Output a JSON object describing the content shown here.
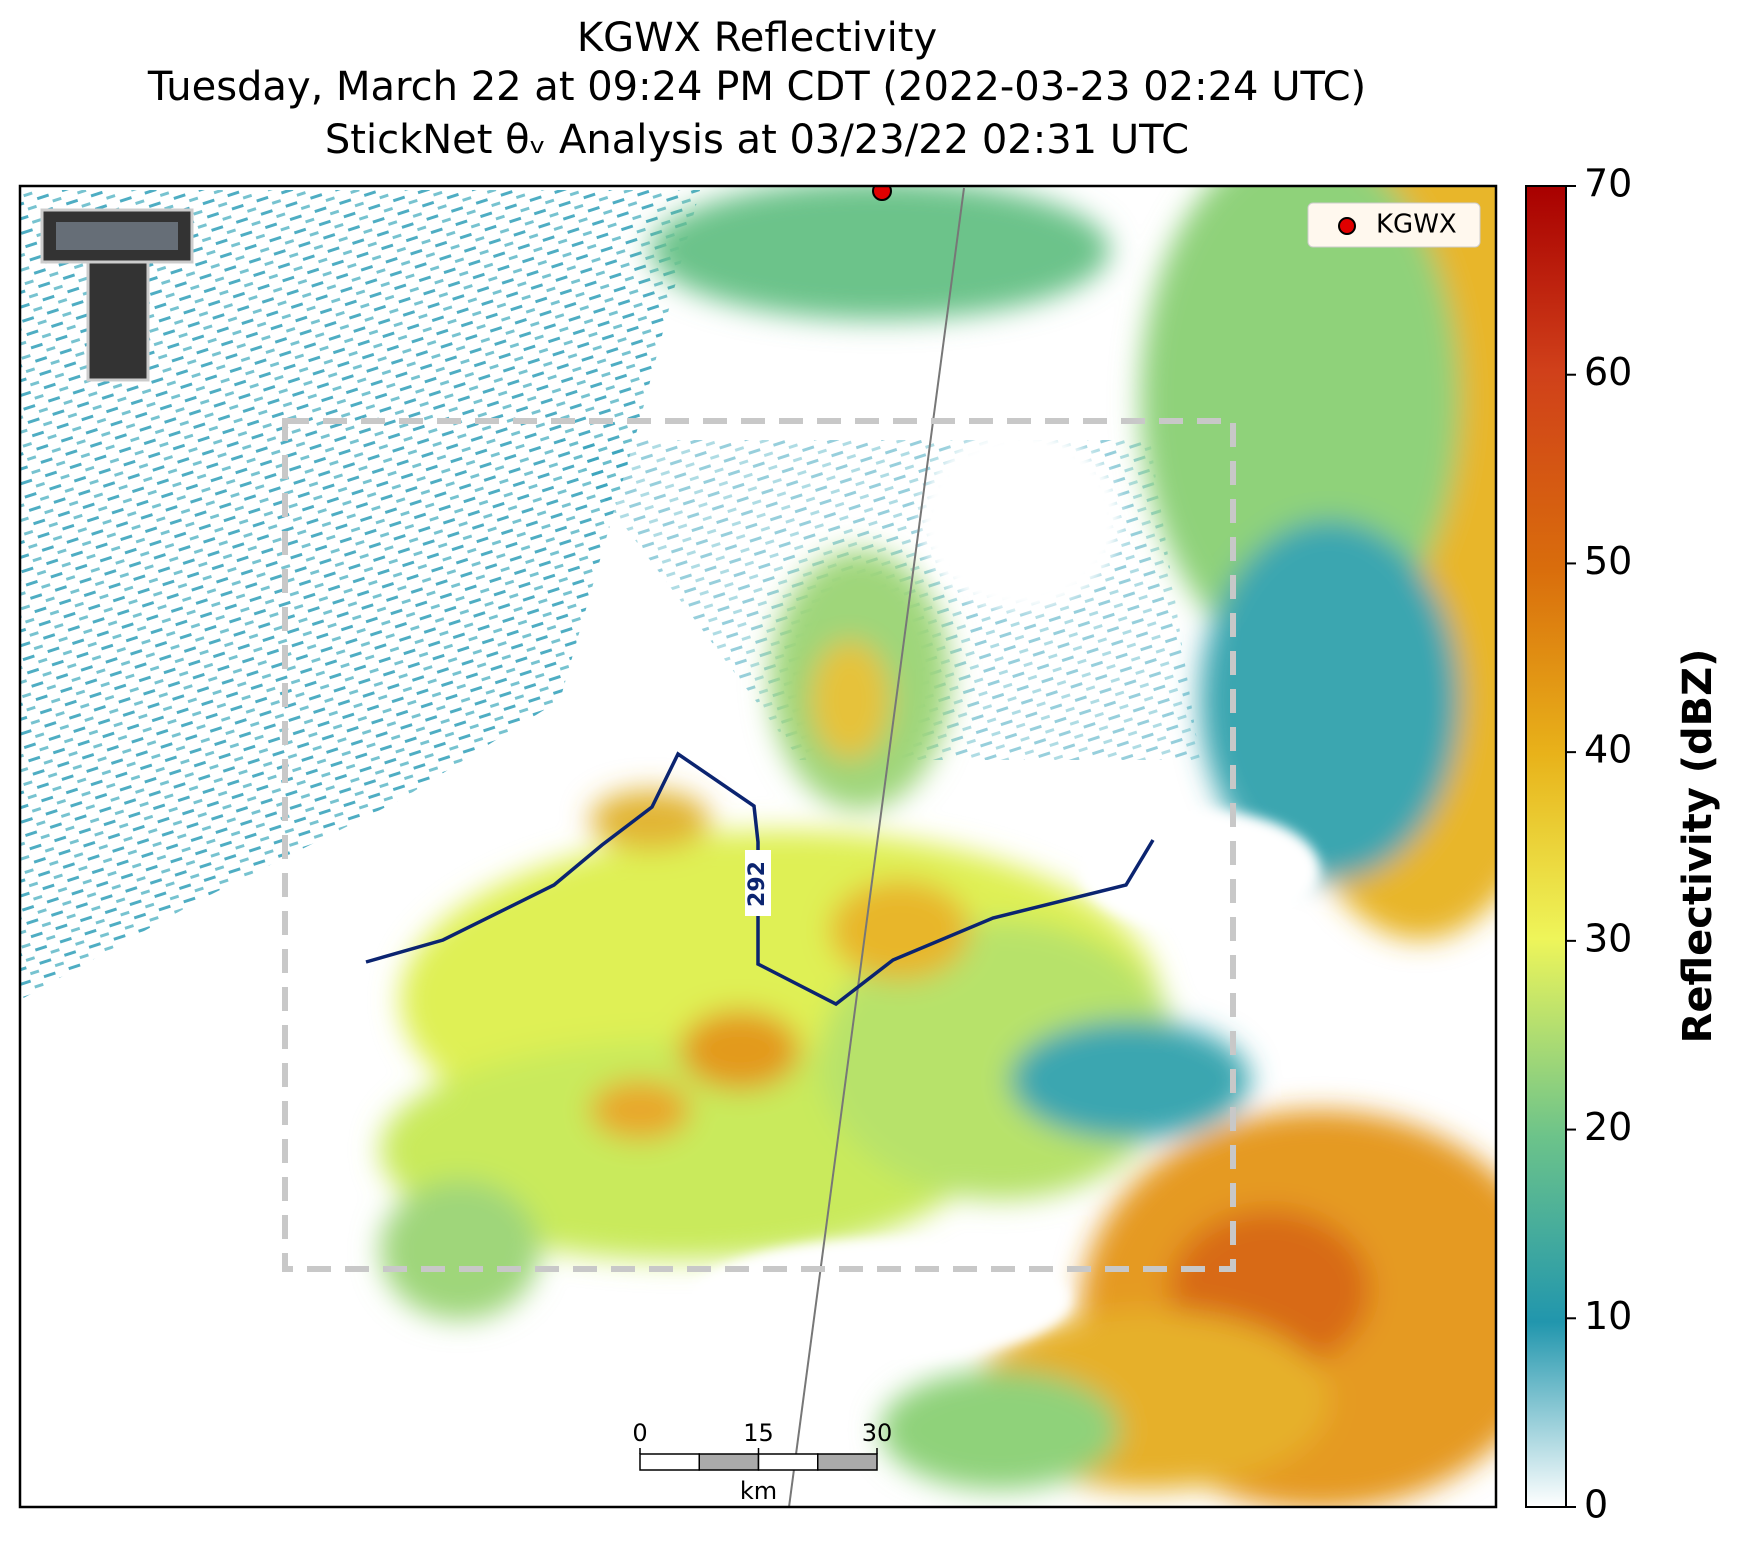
{
  "title": [
    "KGWX Reflectivity",
    "Tuesday, March 22 at 09:24 PM CDT (2022-03-23 02:24 UTC)",
    "StickNet θᵥ Analysis at 03/23/22 02:31 UTC"
  ],
  "legend": {
    "label": "KGWX"
  },
  "colorbar": {
    "label": "Reflectivity (dBZ)",
    "lim": [
      0,
      70
    ],
    "ticks": [
      0,
      10,
      20,
      30,
      40,
      50,
      60,
      70
    ]
  },
  "contour_label": "292",
  "scale_bar": {
    "unit": "km",
    "ticks": [
      0,
      15,
      30
    ]
  }
}
